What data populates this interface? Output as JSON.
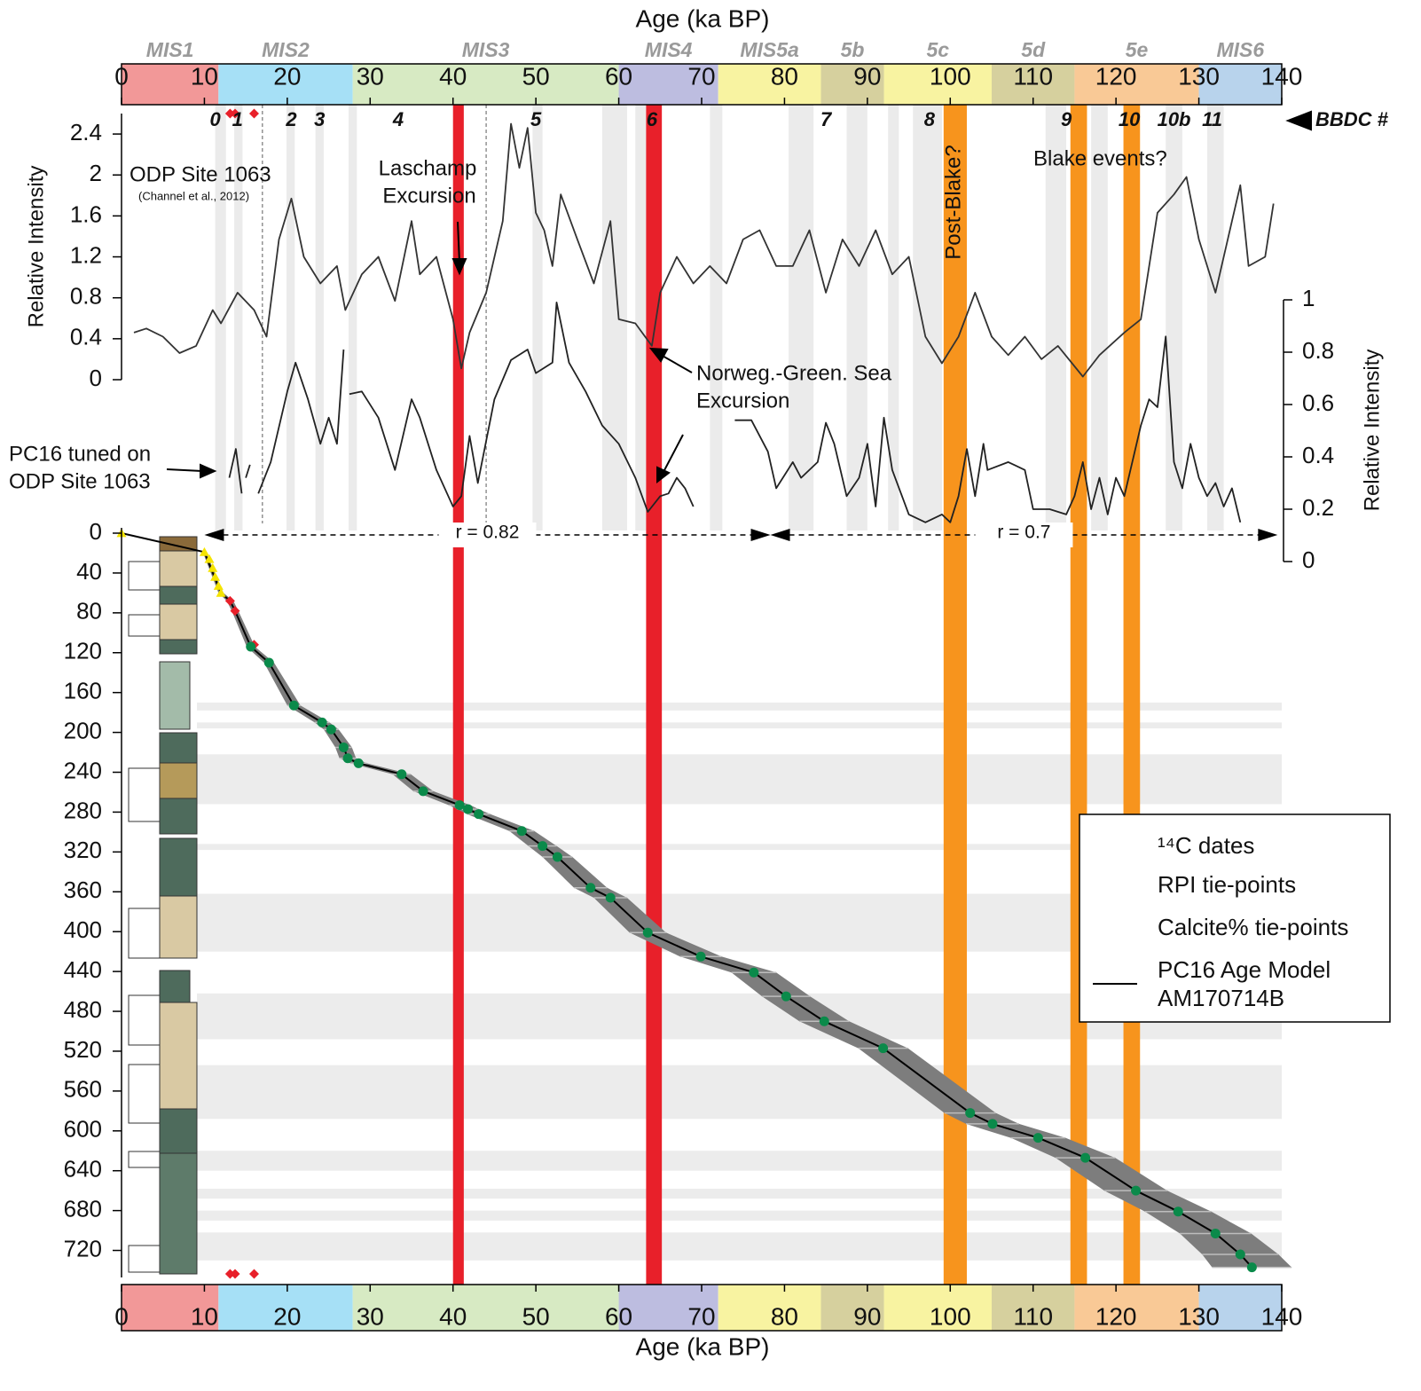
{
  "chart_data": [
    {
      "type": "line",
      "xlabel": "Age (ka BP)",
      "ylabel": "Relative Intensity",
      "xlim": [
        0,
        140
      ],
      "xticks": [
        0,
        10,
        20,
        30,
        40,
        50,
        60,
        70,
        80,
        90,
        100,
        110,
        120,
        130,
        140
      ],
      "ylim": [
        0,
        2.6
      ],
      "yticks": [
        0,
        0.4,
        0.8,
        1.2,
        1.6,
        2,
        2.4
      ],
      "source": "(Channel et al., 2012)",
      "series": [
        {
          "name": "ODP Site 1063",
          "color": "#333333",
          "x": [
            1.5,
            3,
            5,
            7,
            9,
            11,
            12,
            14,
            16,
            17.5,
            19,
            20.5,
            22,
            24,
            26,
            27,
            29,
            31,
            33,
            35,
            36,
            38,
            40,
            41,
            42,
            44,
            46,
            47,
            48,
            49,
            50,
            51,
            52,
            53,
            55,
            57,
            59,
            60,
            62,
            64,
            65,
            67,
            69,
            71,
            73,
            75,
            77,
            79,
            81,
            83,
            85,
            87,
            89,
            91,
            93,
            95,
            97,
            99,
            101,
            103,
            105,
            107,
            109,
            111,
            113,
            116,
            118,
            121,
            123,
            125,
            127,
            128.5,
            130,
            132,
            134,
            135,
            136,
            138,
            139
          ],
          "values": [
            0.46,
            0.5,
            0.42,
            0.26,
            0.33,
            0.68,
            0.55,
            0.85,
            0.68,
            0.42,
            1.37,
            1.77,
            1.2,
            0.94,
            1.11,
            0.68,
            1.03,
            1.2,
            0.77,
            1.55,
            1.03,
            1.2,
            0.59,
            0.11,
            0.46,
            0.85,
            1.55,
            2.5,
            2.07,
            2.46,
            1.63,
            1.46,
            1.11,
            1.81,
            1.37,
            0.94,
            1.55,
            0.59,
            0.55,
            0.33,
            0.85,
            1.2,
            0.94,
            1.11,
            0.94,
            1.37,
            1.46,
            1.11,
            1.11,
            1.46,
            0.85,
            1.37,
            1.11,
            1.46,
            1.03,
            1.2,
            0.42,
            0.16,
            0.42,
            0.85,
            0.42,
            0.24,
            0.42,
            0.2,
            0.33,
            0.03,
            0.24,
            0.46,
            0.59,
            1.63,
            1.81,
            1.98,
            1.37,
            0.85,
            1.55,
            1.9,
            1.11,
            1.2,
            1.72
          ]
        }
      ],
      "mis": [
        {
          "label": "MIS1",
          "start": 0,
          "end": 11.7,
          "color": "#f29898"
        },
        {
          "label": "MIS2",
          "start": 11.7,
          "end": 27.9,
          "color": "#a6e0f6"
        },
        {
          "label": "MIS3",
          "start": 27.9,
          "end": 60,
          "color": "#d7eac3"
        },
        {
          "label": "MIS4",
          "start": 60,
          "end": 72,
          "color": "#bdbde0"
        },
        {
          "label": "MIS5a",
          "start": 72,
          "end": 84.4,
          "color": "#f8f3a1"
        },
        {
          "label": "5b",
          "start": 84.4,
          "end": 92,
          "color": "#d6d09e"
        },
        {
          "label": "5c",
          "start": 92,
          "end": 105,
          "color": "#f8f3a1"
        },
        {
          "label": "5d",
          "start": 105,
          "end": 115,
          "color": "#d6d09e"
        },
        {
          "label": "5e",
          "start": 115,
          "end": 130,
          "color": "#f9c996"
        },
        {
          "label": "MIS6",
          "start": 130,
          "end": 140,
          "color": "#b8d3ec"
        }
      ],
      "bbdc": {
        "label": "BBDC #",
        "events": [
          {
            "label": "0",
            "age": 11.3
          },
          {
            "label": "1",
            "age": 14
          },
          {
            "label": "2",
            "age": 20.5
          },
          {
            "label": "3",
            "age": 23.9
          },
          {
            "label": "4",
            "age": 33.4
          },
          {
            "label": "5",
            "age": 50
          },
          {
            "label": "6",
            "age": 64
          },
          {
            "label": "7",
            "age": 85
          },
          {
            "label": "8",
            "age": 97.5
          },
          {
            "label": "9",
            "age": 114
          },
          {
            "label": "10",
            "age": 121.6
          },
          {
            "label": "10b",
            "age": 127
          },
          {
            "label": "11",
            "age": 131.6
          }
        ]
      },
      "excursions": [
        {
          "start": 40,
          "end": 41.3,
          "color": "#e8202a"
        },
        {
          "start": 63.3,
          "end": 65.2,
          "color": "#e8202a"
        },
        {
          "start": 99.2,
          "end": 102,
          "color": "#f7941d"
        },
        {
          "start": 114.5,
          "end": 116.5,
          "color": "#f7941d"
        },
        {
          "start": 120.9,
          "end": 122.9,
          "color": "#f7941d"
        }
      ],
      "gray_bands": [
        [
          11.3,
          12.6
        ],
        [
          13.6,
          14.6
        ],
        [
          19.9,
          20.9
        ],
        [
          23.4,
          24.4
        ],
        [
          27.4,
          28.4
        ],
        [
          49.6,
          50.8
        ],
        [
          58,
          61
        ],
        [
          62,
          65
        ],
        [
          71,
          72.5
        ],
        [
          80.5,
          83.5
        ],
        [
          87.5,
          90
        ],
        [
          92.5,
          93.8
        ],
        [
          95.5,
          99
        ],
        [
          111.5,
          114
        ],
        [
          117,
          119
        ],
        [
          126,
          128
        ],
        [
          131,
          133
        ]
      ],
      "dashed_lines": [
        17,
        44
      ],
      "annotations": {
        "laschamp": [
          "Laschamp",
          "Excursion"
        ],
        "norweg": [
          "Norweg.-Green. Sea",
          "Excursion"
        ],
        "post_blake": "Post-Blake?",
        "blake": "Blake events?"
      }
    },
    {
      "type": "line",
      "ylabel": "Relative Intensity",
      "ylim": [
        0,
        1
      ],
      "yticks": [
        0,
        0.2,
        0.4,
        0.6,
        0.8,
        1
      ],
      "series": [
        {
          "name_lines": [
            "PC16 tuned on",
            "ODP Site 1063"
          ],
          "color": "#222222",
          "x": [
            13,
            13.8,
            14.5,
            14.7,
            15,
            15.5,
            16,
            16.5,
            18,
            20,
            21,
            22.5,
            24,
            25,
            26,
            26.8,
            27.2,
            27.5,
            29,
            31,
            33,
            35,
            36,
            38,
            40,
            41,
            42,
            43,
            45,
            47,
            49,
            50,
            52,
            52.5,
            54,
            56,
            58,
            60,
            62,
            63.5,
            65,
            66,
            67,
            68,
            69,
            71.5,
            74,
            76,
            78,
            79,
            81,
            82,
            84,
            85,
            86,
            87.5,
            89,
            90,
            91,
            92,
            93,
            95,
            97,
            99,
            100,
            101,
            102,
            103,
            104,
            104.5,
            107,
            109,
            110,
            112,
            114,
            115,
            116,
            117,
            118,
            119,
            120,
            121,
            123,
            124,
            125,
            126,
            127,
            128,
            129,
            130,
            131,
            132,
            133,
            134,
            135
          ],
          "values": [
            0.32,
            0.43,
            0.26,
            null,
            0.32,
            0.37,
            null,
            0.26,
            0.38,
            0.65,
            0.76,
            0.62,
            0.45,
            0.55,
            0.45,
            0.81,
            null,
            0.64,
            0.65,
            0.55,
            0.35,
            0.62,
            0.55,
            0.35,
            0.21,
            0.25,
            0.48,
            0.3,
            0.62,
            0.77,
            0.81,
            0.72,
            0.76,
            0.99,
            0.76,
            0.65,
            0.52,
            0.45,
            0.32,
            0.19,
            0.25,
            0.26,
            0.32,
            0.28,
            0.21,
            null,
            0.54,
            0.54,
            0.42,
            0.28,
            0.38,
            0.32,
            0.38,
            0.53,
            0.45,
            0.25,
            0.32,
            0.45,
            0.21,
            0.55,
            0.35,
            0.18,
            0.15,
            0.18,
            0.15,
            0.25,
            0.43,
            0.25,
            0.45,
            0.35,
            0.38,
            0.35,
            0.2,
            0.2,
            0.18,
            0.25,
            0.38,
            0.2,
            0.32,
            0.18,
            0.32,
            0.25,
            0.52,
            0.62,
            0.59,
            0.86,
            0.38,
            0.28,
            0.45,
            0.32,
            0.25,
            0.3,
            0.21,
            0.28,
            0.15
          ]
        }
      ],
      "correlations": [
        {
          "label": "r = 0.82",
          "start": 10,
          "end": 78.3
        },
        {
          "label": "r = 0.7",
          "start": 78.3,
          "end": 139.5
        }
      ]
    },
    {
      "type": "scatter",
      "xlabel": "Age (ka BP)",
      "xlim": [
        0,
        140
      ],
      "xticks": [
        0,
        10,
        20,
        30,
        40,
        50,
        60,
        70,
        80,
        90,
        100,
        110,
        120,
        130,
        140
      ],
      "ylim": [
        0,
        740
      ],
      "yticks": [
        0,
        40,
        80,
        120,
        160,
        200,
        240,
        280,
        320,
        360,
        400,
        440,
        480,
        520,
        560,
        600,
        640,
        680,
        720
      ],
      "y_inverted": true,
      "depth_bands": [
        [
          170,
          178
        ],
        [
          190,
          196
        ],
        [
          222,
          272
        ],
        [
          312,
          318
        ],
        [
          362,
          420
        ],
        [
          462,
          508
        ],
        [
          534,
          588
        ],
        [
          620,
          640
        ],
        [
          658,
          668
        ],
        [
          680,
          690
        ],
        [
          702,
          730
        ]
      ],
      "series": [
        {
          "name": "¹⁴C dates",
          "color": "#e8202a",
          "marker": "diamond",
          "x": [
            13.1,
            13.7,
            16
          ],
          "values": [
            68,
            78,
            112
          ]
        },
        {
          "name": "RPI tie-points",
          "color": "#0a8a4a",
          "marker": "circle",
          "x": [
            15.6,
            17.8,
            20.8,
            24.2,
            25.3,
            26.8,
            27.3,
            28.6,
            33.8,
            36.4,
            40.8,
            41.8,
            43.1,
            48.3,
            50.8,
            52.6,
            56.6,
            59,
            63.5,
            69.9,
            76.3,
            80.2,
            84.8,
            91.9,
            102.4,
            105.1,
            110.6,
            116.3,
            122.4,
            127.5,
            132,
            135,
            136.4
          ],
          "values": [
            114,
            130,
            173,
            190,
            197,
            215,
            226,
            231,
            242,
            259,
            273,
            277,
            282,
            299,
            314,
            325,
            356,
            366,
            401,
            425,
            441,
            465,
            490,
            517,
            582,
            593,
            607,
            627,
            660,
            681,
            703,
            724,
            737
          ]
        },
        {
          "name": "Calcite% tie-points",
          "color": "#f5e400",
          "marker": "triangle",
          "x": [
            0,
            10,
            10.6,
            11,
            11.3,
            11.7,
            12
          ],
          "values": [
            0,
            19,
            26,
            35,
            44,
            53,
            60
          ]
        },
        {
          "name_lines": [
            "PC16 Age Model",
            "AM170714B"
          ],
          "color": "#000000",
          "marker": "line",
          "x": [
            0,
            10,
            12,
            13.1,
            13.7,
            15.6,
            17.8,
            20.8,
            24.2,
            25.3,
            26.8,
            27.3,
            28.6,
            33.8,
            36.4,
            40.8,
            41.8,
            43.1,
            48.3,
            50.8,
            52.6,
            56.6,
            59,
            63.5,
            69.9,
            76.3,
            80.2,
            84.8,
            91.9,
            102.4,
            105.1,
            110.6,
            116.3,
            122.4,
            127.5,
            132,
            135,
            136.4
          ],
          "values": [
            0,
            19,
            60,
            68,
            78,
            114,
            130,
            173,
            190,
            197,
            215,
            226,
            231,
            242,
            259,
            273,
            277,
            282,
            299,
            314,
            325,
            356,
            366,
            401,
            425,
            441,
            465,
            490,
            517,
            582,
            593,
            607,
            627,
            660,
            681,
            703,
            724,
            737
          ],
          "errors": [
            0,
            0.2,
            0.3,
            0.4,
            0.4,
            0.5,
            0.6,
            0.8,
            0.9,
            0.9,
            1,
            1,
            1,
            1.1,
            1.2,
            1.3,
            1.3,
            1.4,
            1.5,
            1.7,
            1.8,
            2,
            2,
            2.2,
            2.5,
            2.7,
            2.9,
            3,
            3,
            3.1,
            3.2,
            3.3,
            3.6,
            3.8,
            4,
            4.3,
            4.6,
            4.8
          ]
        }
      ]
    }
  ]
}
